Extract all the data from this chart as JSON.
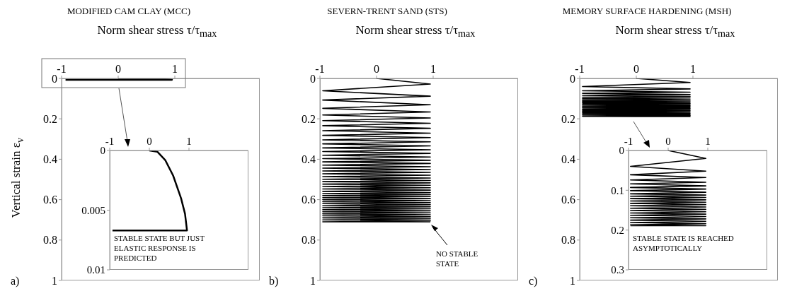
{
  "chart_data": [
    {
      "type": "line",
      "title": "MODIFIED CAM CLAY (MCC)",
      "xlabel": "Norm shear stress τ/τ$_{max}$",
      "ylabel": "Vertical strain ε$_{v}$",
      "xlim": [
        -1,
        2.5
      ],
      "xticks": [
        -1,
        0,
        1
      ],
      "ylim": [
        1,
        0
      ],
      "yticks": [
        0,
        0.2,
        0.4,
        0.6,
        0.8,
        1
      ],
      "annotations": [
        "a)"
      ],
      "series": [
        {
          "color": "#000000",
          "x": [
            0,
            0.2,
            0.4,
            0.6,
            0.8,
            0.9,
            0.95,
            -0.93
          ],
          "values": [
            0,
            0.0001,
            0.0008,
            0.0021,
            0.004,
            0.0053,
            0.0067,
            0.0067
          ]
        }
      ]
    },
    {
      "type": "line",
      "xlim": [
        -1,
        2.5
      ],
      "xticks": [
        -1,
        0,
        1
      ],
      "ylim": [
        0.01,
        0
      ],
      "yticks": [
        0,
        0.005,
        0.01
      ],
      "annotations": [
        "STABLE STATE BUT JUST ELASTIC RESPONSE IS PREDICTED"
      ],
      "series": [
        {
          "color": "#000000",
          "x": [
            0,
            0.2,
            0.4,
            0.6,
            0.8,
            0.9,
            0.95,
            -0.93
          ],
          "values": [
            0,
            0.0001,
            0.0008,
            0.0021,
            0.004,
            0.0053,
            0.0067,
            0.0067
          ]
        }
      ]
    },
    {
      "type": "line",
      "title": "SEVERN-TRENT SAND (STS)",
      "xlabel": "Norm shear stress τ/τ$_{max}$",
      "xlim": [
        -1,
        2.5
      ],
      "xticks": [
        -1,
        0,
        1
      ],
      "ylim": [
        1,
        0
      ],
      "yticks": [
        0,
        0.2,
        0.4,
        0.6,
        0.8,
        1
      ],
      "annotations": [
        "b)",
        {
          "text": "NO STABLE STATE",
          "x": 0.95,
          "y": 0.71
        }
      ],
      "series": [
        {
          "color": "#000000",
          "x": [
            0,
            0.95,
            -0.95,
            0.95,
            -0.95,
            0.95,
            -0.95,
            0.95,
            -0.95,
            0.95,
            -0.95,
            0.95,
            -0.95,
            0.95,
            -0.95,
            0.95,
            -0.95,
            0.95,
            -0.95,
            0.95,
            -0.95,
            0.95,
            -0.95,
            0.95,
            -0.95,
            0.95,
            -0.95,
            0.95,
            -0.95,
            0.95,
            -0.95,
            0.95,
            -0.95,
            0.95,
            -0.95,
            0.95,
            -0.95,
            0.95,
            -0.95,
            0.95,
            -0.95,
            0.95,
            -0.95,
            0.95,
            -0.95,
            0.95,
            -0.95,
            0.95,
            -0.95,
            0.95,
            -0.95,
            0.95,
            -0.95,
            0.95,
            -0.95,
            0.95,
            -0.95,
            0.95,
            -0.95,
            0.95,
            -0.95,
            0.95,
            -0.95,
            0.95,
            -0.95,
            0.95,
            -0.95,
            0.95,
            -0.95,
            0.95,
            -0.95,
            0.95,
            -0.95,
            0.95,
            -0.95,
            0.95,
            -0.95,
            0.95,
            -0.95,
            0.95,
            -0.95,
            0.95,
            -0.95,
            0.95
          ],
          "values": [
            0,
            0.028,
            0.061,
            0.088,
            0.107,
            0.13,
            0.148,
            0.166,
            0.181,
            0.196,
            0.209,
            0.222,
            0.234,
            0.247,
            0.259,
            0.271,
            0.282,
            0.293,
            0.304,
            0.314,
            0.324,
            0.334,
            0.344,
            0.353,
            0.362,
            0.371,
            0.38,
            0.389,
            0.397,
            0.405,
            0.413,
            0.421,
            0.429,
            0.437,
            0.444,
            0.451,
            0.458,
            0.465,
            0.472,
            0.479,
            0.486,
            0.493,
            0.499,
            0.505,
            0.511,
            0.517,
            0.523,
            0.529,
            0.535,
            0.541,
            0.547,
            0.553,
            0.559,
            0.565,
            0.57,
            0.575,
            0.58,
            0.585,
            0.59,
            0.595,
            0.6,
            0.605,
            0.61,
            0.615,
            0.62,
            0.625,
            0.63,
            0.635,
            0.64,
            0.645,
            0.65,
            0.655,
            0.66,
            0.665,
            0.67,
            0.675,
            0.68,
            0.685,
            0.69,
            0.695,
            0.7,
            0.705,
            0.71,
            0.71
          ]
        }
      ]
    },
    {
      "type": "line",
      "title": "MEMORY SURFACE HARDENING (MSH)",
      "xlabel": "Norm shear stress τ/τ$_{max}$",
      "xlim": [
        -1,
        2.5
      ],
      "xticks": [
        -1,
        0,
        1
      ],
      "ylim": [
        1,
        0
      ],
      "yticks": [
        0,
        0.2,
        0.4,
        0.6,
        0.8,
        1
      ],
      "annotations": [
        "c)"
      ],
      "series": [
        {
          "color": "#000000",
          "x": [
            0,
            0.95,
            -0.95,
            0.95,
            -0.95,
            0.95,
            -0.95,
            0.95,
            -0.95,
            0.95,
            -0.95,
            0.95,
            -0.95,
            0.95,
            -0.95,
            0.95,
            -0.95,
            0.95,
            -0.95,
            0.95,
            -0.95,
            0.95,
            -0.95,
            0.95,
            -0.95,
            0.95,
            -0.95,
            0.95,
            -0.95,
            0.95,
            -0.95,
            0.95,
            -0.95,
            0.95,
            -0.95,
            0.95,
            -0.95,
            0.95,
            -0.95,
            0.95,
            -0.95,
            0.95,
            -0.95
          ],
          "values": [
            0,
            0.02,
            0.04,
            0.052,
            0.061,
            0.068,
            0.074,
            0.08,
            0.084,
            0.089,
            0.093,
            0.097,
            0.101,
            0.105,
            0.109,
            0.112,
            0.115,
            0.118,
            0.121,
            0.124,
            0.127,
            0.13,
            0.133,
            0.136,
            0.139,
            0.142,
            0.145,
            0.148,
            0.151,
            0.154,
            0.157,
            0.16,
            0.163,
            0.166,
            0.169,
            0.172,
            0.175,
            0.178,
            0.181,
            0.184,
            0.187,
            0.189,
            0.189
          ]
        }
      ]
    },
    {
      "type": "line",
      "xlim": [
        -1,
        2.5
      ],
      "xticks": [
        -1,
        0,
        1
      ],
      "ylim": [
        0.3,
        0
      ],
      "yticks": [
        0,
        0.1,
        0.2,
        0.3
      ],
      "annotations": [
        "STABLE STATE IS REACHED ASYMPTOTICALLY"
      ],
      "series": [
        {
          "color": "#000000",
          "x": [
            0,
            0.95,
            -0.95,
            0.95,
            -0.95,
            0.95,
            -0.95,
            0.95,
            -0.95,
            0.95,
            -0.95,
            0.95,
            -0.95,
            0.95,
            -0.95,
            0.95,
            -0.95,
            0.95,
            -0.95,
            0.95,
            -0.95,
            0.95,
            -0.95,
            0.95,
            -0.95,
            0.95,
            -0.95,
            0.95,
            -0.95,
            0.95,
            -0.95,
            0.95,
            -0.95,
            0.95,
            -0.95,
            0.95,
            -0.95,
            0.95,
            -0.95,
            0.95,
            -0.95,
            0.95,
            -0.95
          ],
          "values": [
            0,
            0.02,
            0.04,
            0.052,
            0.061,
            0.068,
            0.074,
            0.08,
            0.084,
            0.089,
            0.093,
            0.097,
            0.101,
            0.105,
            0.109,
            0.112,
            0.115,
            0.118,
            0.121,
            0.124,
            0.127,
            0.13,
            0.133,
            0.136,
            0.139,
            0.142,
            0.145,
            0.148,
            0.151,
            0.154,
            0.157,
            0.16,
            0.163,
            0.166,
            0.169,
            0.172,
            0.175,
            0.178,
            0.181,
            0.184,
            0.187,
            0.189,
            0.189
          ]
        }
      ]
    }
  ]
}
